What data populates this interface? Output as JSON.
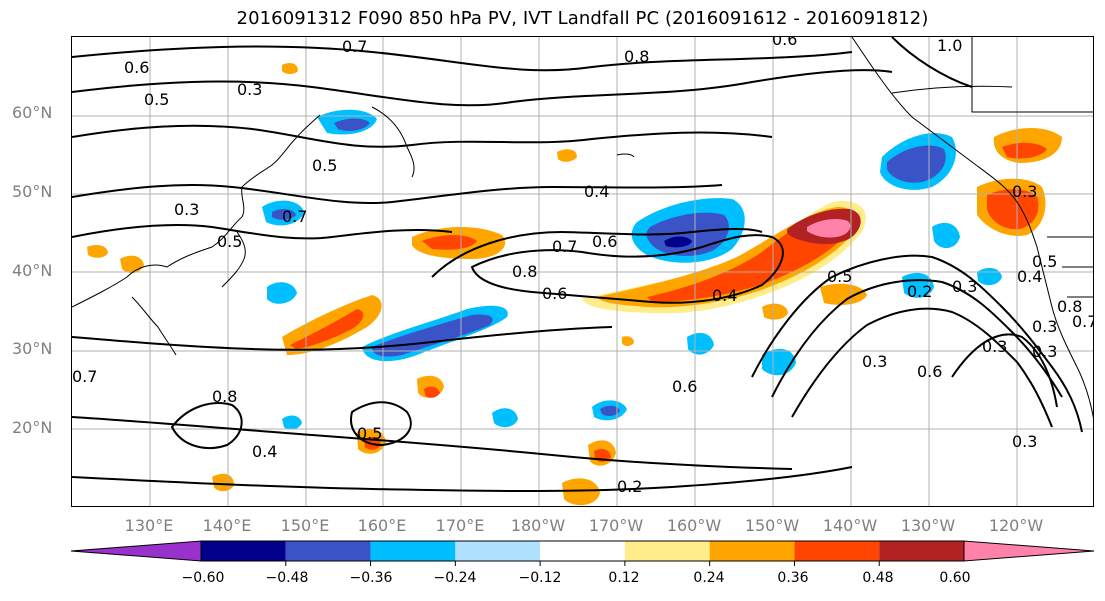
{
  "title": "2016091312 F090 850 hPa PV, IVT Landfall PC (2016091612 - 2016091812)",
  "lat_labels": [
    "60°N",
    "50°N",
    "40°N",
    "30°N",
    "20°N"
  ],
  "lon_labels": [
    "130°E",
    "140°E",
    "150°E",
    "160°E",
    "170°E",
    "180°W",
    "170°W",
    "160°W",
    "150°W",
    "140°W",
    "130°W",
    "120°W"
  ],
  "colorbar": {
    "colors": [
      "#9932CC",
      "#00008B",
      "#3A54C8",
      "#00BFFF",
      "#B0E2FF",
      "#FFFFFF",
      "#FFEC8B",
      "#FFA500",
      "#FF4500",
      "#B22222",
      "#FF82AB"
    ],
    "tick_labels": [
      "−0.60",
      "−0.48",
      "−0.36",
      "−0.24",
      "−0.12",
      "0.12",
      "0.24",
      "0.36",
      "0.48",
      "0.60"
    ],
    "extend": "both"
  },
  "contour_labels": [
    "0.7",
    "0.8",
    "0.6",
    "1.0",
    "0.6",
    "0.5",
    "0.3",
    "0.5",
    "0.4",
    "0.4",
    "0.7",
    "0.3",
    "0.5",
    "0.6",
    "0.7",
    "0.6",
    "0.8",
    "0.5",
    "0.4",
    "0.5",
    "0.7",
    "0.8",
    "0.6",
    "0.2",
    "0.3",
    "0.3",
    "0.3",
    "0.3",
    "0.2",
    "0.3",
    "0.3",
    "0.6",
    "0.8",
    "0.7",
    "0.5",
    "0.4",
    "0.3"
  ],
  "colors": {
    "label_gray": "#808080",
    "grid": "#b0b0b0",
    "contour": "#000000"
  }
}
